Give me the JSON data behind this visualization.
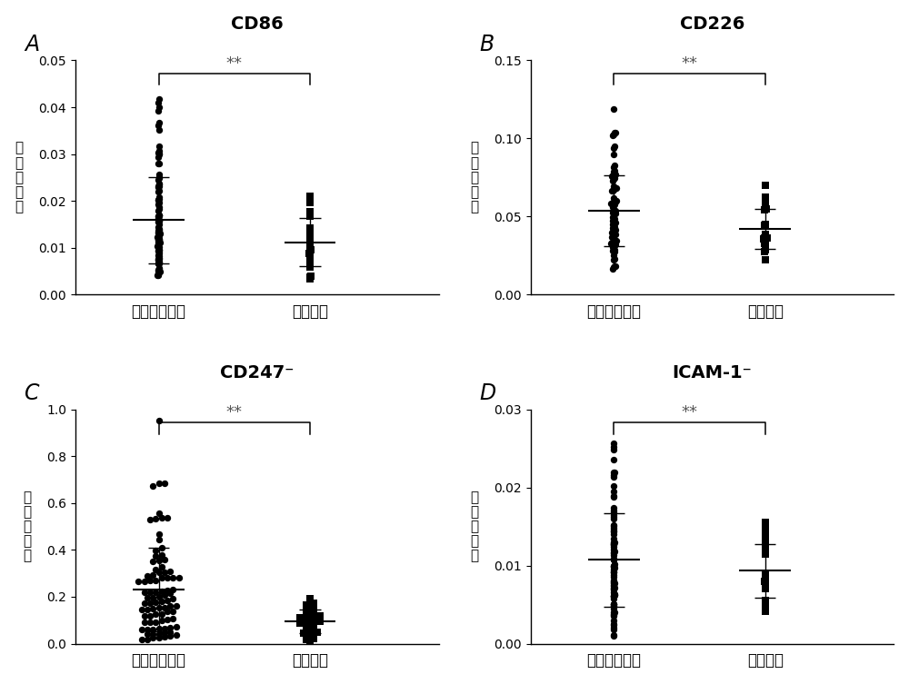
{
  "panels": [
    {
      "label": "A",
      "title": "CD86",
      "title_super": "",
      "ylim": [
        0.0,
        0.05
      ],
      "yticks": [
        0.0,
        0.01,
        0.02,
        0.03,
        0.04,
        0.05
      ],
      "ytick_labels": [
        "0.00",
        "0.01",
        "0.02",
        "0.03",
        "0.04",
        "0.05"
      ],
      "group1_median": 0.017,
      "group1_sd": 0.009,
      "group1_n": 90,
      "group2_median": 0.011,
      "group2_sd": 0.004,
      "group2_n": 25
    },
    {
      "label": "B",
      "title": "CD226",
      "title_super": "",
      "ylim": [
        0.0,
        0.15
      ],
      "yticks": [
        0.0,
        0.05,
        0.1,
        0.15
      ],
      "ytick_labels": [
        "0.00",
        "0.05",
        "0.10",
        "0.15"
      ],
      "group1_median": 0.05,
      "group1_sd": 0.018,
      "group1_n": 88,
      "group2_median": 0.04,
      "group2_sd": 0.012,
      "group2_n": 20
    },
    {
      "label": "C",
      "title": "CD247",
      "title_super": "⁻",
      "ylim": [
        0.0,
        1.0
      ],
      "yticks": [
        0.0,
        0.2,
        0.4,
        0.6,
        0.8,
        1.0
      ],
      "ytick_labels": [
        "0.0",
        "0.2",
        "0.4",
        "0.6",
        "0.8",
        "1.0"
      ],
      "group1_median": 0.22,
      "group1_sd": 0.13,
      "group1_n": 90,
      "group2_median": 0.1,
      "group2_sd": 0.04,
      "group2_n": 25
    },
    {
      "label": "D",
      "title": "ICAM-1",
      "title_super": "⁻",
      "ylim": [
        0.0,
        0.03
      ],
      "yticks": [
        0.0,
        0.01,
        0.02,
        0.03
      ],
      "ytick_labels": [
        "0.00",
        "0.01",
        "0.02",
        "0.03"
      ],
      "group1_median": 0.01,
      "group1_sd": 0.006,
      "group1_n": 90,
      "group2_median": 0.008,
      "group2_sd": 0.003,
      "group2_n": 25
    }
  ],
  "group_labels": [
    "非小细胞肺癌",
    "良性结节"
  ],
  "ylabel_chars": [
    "相",
    "对",
    "表",
    "达",
    "量"
  ],
  "sig_text": "**",
  "bg_color": "#ffffff",
  "dot_color": "#000000",
  "title_fontsize": 14,
  "label_fontsize": 17,
  "tick_fontsize": 10,
  "xlabel_fontsize": 12,
  "sig_fontsize": 13
}
